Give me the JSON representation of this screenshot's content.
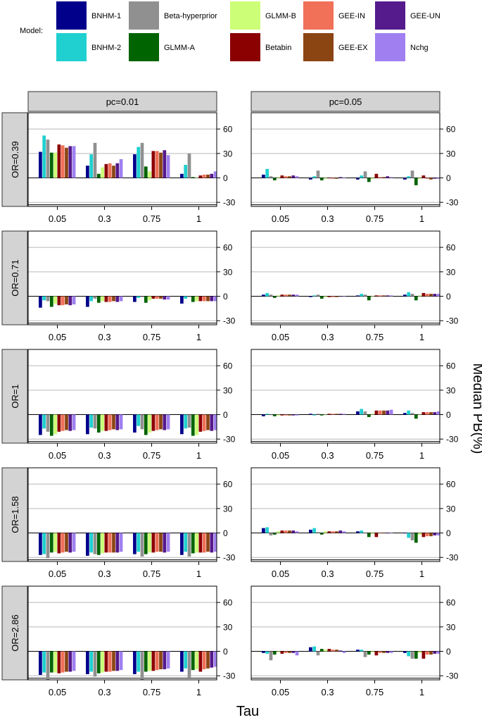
{
  "chart_data": {
    "type": "bar",
    "legend": {
      "title": "Model:",
      "placement": "top",
      "entries": [
        {
          "name": "BNHM-1",
          "color": "#00008b"
        },
        {
          "name": "BNHM-2",
          "color": "#20d0d0"
        },
        {
          "name": "Beta-hyperprior",
          "color": "#909090"
        },
        {
          "name": "GLMM-A",
          "color": "#006400"
        },
        {
          "name": "GLMM-B",
          "color": "#ccff77"
        },
        {
          "name": "Betabin",
          "color": "#8b0000"
        },
        {
          "name": "GEE-IN",
          "color": "#f07058"
        },
        {
          "name": "GEE-EX",
          "color": "#8b4513"
        },
        {
          "name": "GEE-UN",
          "color": "#551a8b"
        },
        {
          "name": "Nchg",
          "color": "#a080f0"
        }
      ]
    },
    "series_order": [
      "BNHM-1",
      "BNHM-2",
      "Beta-hyperprior",
      "GLMM-A",
      "GLMM-B",
      "Betabin",
      "GEE-IN",
      "GEE-EX",
      "GEE-UN",
      "Nchg"
    ],
    "xlabel": "Tau",
    "ylabel": "Median PB(%)",
    "categories": [
      "0.05",
      "0.3",
      "0.75",
      "1"
    ],
    "ylim": [
      -35,
      80
    ],
    "yticks": [
      -30,
      0,
      30,
      60
    ],
    "grid_lines": [
      -30,
      30,
      60
    ],
    "column_strips": [
      "pc=0.01",
      "pc=0.05"
    ],
    "row_strips": [
      "OR=0.39",
      "OR=0.71",
      "OR=1",
      "OR=1.58",
      "OR=2.86"
    ],
    "panels": [
      [
        [
          [
            32,
            52,
            47,
            31,
            31,
            41,
            40,
            37,
            39,
            39
          ],
          [
            15,
            29,
            43,
            5,
            13,
            17,
            18,
            15,
            18,
            23
          ],
          [
            29,
            38,
            43,
            14,
            8,
            33,
            33,
            31,
            34,
            28
          ],
          [
            5,
            16,
            30,
            1,
            0,
            3,
            4,
            4,
            5,
            8
          ]
        ],
        [
          [
            4,
            11,
            2,
            -3,
            1,
            3,
            2,
            2,
            3,
            2
          ],
          [
            -2,
            2,
            9,
            -3,
            -1,
            0,
            -1,
            -1,
            1,
            0
          ],
          [
            -2,
            3,
            8,
            -5,
            -1,
            5,
            1,
            1,
            2,
            1
          ],
          [
            -2,
            2,
            9,
            -9,
            -1,
            3,
            -1,
            -2,
            -1,
            -1
          ]
        ]
      ],
      [
        [
          [
            -14,
            -5,
            -6,
            -13,
            -9,
            -11,
            -11,
            -10,
            -11,
            -10
          ],
          [
            -13,
            -6,
            -3,
            -8,
            -6,
            -7,
            -7,
            -6,
            -7,
            -6
          ],
          [
            -7,
            -2,
            -1,
            -8,
            -5,
            -3,
            -3,
            -3,
            -4,
            -4
          ],
          [
            -9,
            -3,
            -1,
            -7,
            -6,
            -6,
            -6,
            -6,
            -6,
            -6
          ]
        ],
        [
          [
            2,
            4,
            2,
            -2,
            1,
            2,
            2,
            2,
            2,
            2
          ],
          [
            -1,
            1,
            2,
            -3,
            -1,
            -1,
            -1,
            -1,
            0,
            0
          ],
          [
            1,
            3,
            2,
            -5,
            0,
            1,
            1,
            1,
            1,
            1
          ],
          [
            2,
            5,
            3,
            -5,
            1,
            4,
            3,
            3,
            3,
            3
          ]
        ]
      ],
      [
        [
          [
            -25,
            -17,
            -21,
            -26,
            -24,
            -21,
            -20,
            -19,
            -20,
            -19
          ],
          [
            -24,
            -16,
            -17,
            -22,
            -20,
            -20,
            -19,
            -18,
            -19,
            -18
          ],
          [
            -22,
            -14,
            -18,
            -25,
            -22,
            -20,
            -19,
            -18,
            -19,
            -18
          ],
          [
            -24,
            -17,
            -16,
            -26,
            -25,
            -21,
            -20,
            -19,
            -20,
            -19
          ]
        ],
        [
          [
            -2,
            1,
            0,
            -2,
            -1,
            -1,
            -1,
            -1,
            -1,
            -1
          ],
          [
            1,
            -1,
            1,
            -1,
            0,
            1,
            1,
            1,
            1,
            1
          ],
          [
            4,
            7,
            4,
            -3,
            1,
            5,
            5,
            5,
            5,
            6
          ],
          [
            2,
            5,
            2,
            -5,
            0,
            3,
            3,
            3,
            3,
            4
          ]
        ]
      ],
      [
        [
          [
            -27,
            -26,
            -31,
            -24,
            -23,
            -25,
            -24,
            -23,
            -24,
            -23
          ],
          [
            -28,
            -24,
            -26,
            -27,
            -25,
            -24,
            -24,
            -24,
            -24,
            -23
          ],
          [
            -26,
            -23,
            -29,
            -26,
            -24,
            -24,
            -23,
            -23,
            -24,
            -23
          ],
          [
            -27,
            -23,
            -29,
            -25,
            -24,
            -24,
            -24,
            -23,
            -24,
            -23
          ]
        ],
        [
          [
            6,
            7,
            -3,
            -2,
            2,
            3,
            3,
            3,
            3,
            2
          ],
          [
            4,
            6,
            1,
            -2,
            2,
            2,
            2,
            2,
            3,
            2
          ],
          [
            2,
            3,
            0,
            -5,
            -1,
            -5,
            0,
            0,
            0,
            0
          ],
          [
            0,
            -6,
            -9,
            -12,
            -2,
            -5,
            -4,
            -4,
            -3,
            -3
          ]
        ]
      ],
      [
        [
          [
            -29,
            -26,
            -35,
            -26,
            -26,
            -27,
            -26,
            -25,
            -25,
            -24
          ],
          [
            -28,
            -25,
            -31,
            -27,
            -26,
            -25,
            -25,
            -24,
            -24,
            -23
          ],
          [
            -28,
            -25,
            -35,
            -25,
            -24,
            -24,
            -23,
            -22,
            -22,
            -21
          ],
          [
            -25,
            -21,
            -32,
            -23,
            -22,
            -25,
            -22,
            -21,
            -20,
            -19
          ]
        ],
        [
          [
            -2,
            -3,
            -11,
            -4,
            -1,
            -3,
            -2,
            -2,
            -2,
            -5
          ],
          [
            5,
            6,
            -5,
            3,
            2,
            3,
            2,
            2,
            1,
            -2
          ],
          [
            2,
            2,
            -7,
            -4,
            -1,
            -5,
            -2,
            -2,
            -2,
            -2
          ],
          [
            -2,
            -6,
            -9,
            -9,
            -2,
            -9,
            -4,
            -4,
            -3,
            -3
          ]
        ]
      ]
    ]
  }
}
